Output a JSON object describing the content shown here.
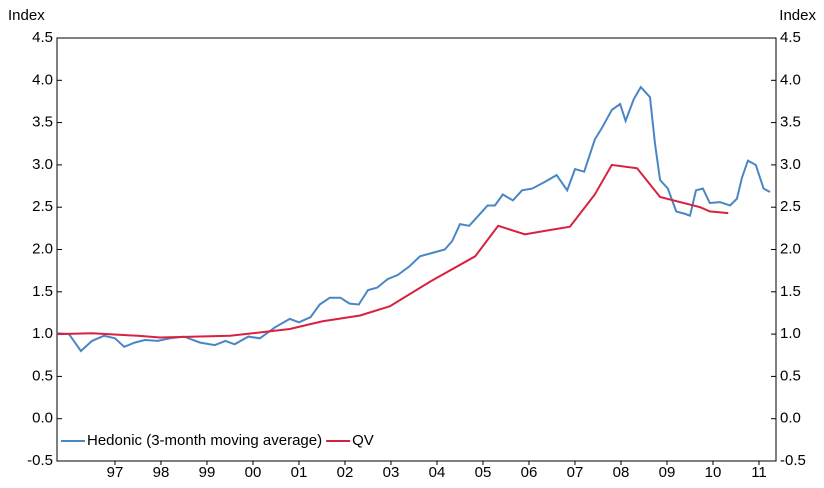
{
  "chart_data": {
    "type": "line",
    "y_label": "Index",
    "y2_label": "Index",
    "xlim": [
      1996.24,
      2011.87
    ],
    "xticks": [
      {
        "value": 1997.5,
        "label": "97"
      },
      {
        "value": 1998.5,
        "label": "98"
      },
      {
        "value": 1999.5,
        "label": "99"
      },
      {
        "value": 2000.5,
        "label": "00"
      },
      {
        "value": 2001.5,
        "label": "01"
      },
      {
        "value": 2002.5,
        "label": "02"
      },
      {
        "value": 2003.5,
        "label": "03"
      },
      {
        "value": 2004.5,
        "label": "04"
      },
      {
        "value": 2005.5,
        "label": "05"
      },
      {
        "value": 2006.5,
        "label": "06"
      },
      {
        "value": 2007.5,
        "label": "07"
      },
      {
        "value": 2008.5,
        "label": "08"
      },
      {
        "value": 2009.5,
        "label": "09"
      },
      {
        "value": 2010.5,
        "label": "10"
      },
      {
        "value": 2011.5,
        "label": "11"
      }
    ],
    "ylim": [
      -0.5,
      4.5
    ],
    "yticks": [
      4.5,
      {
        "value": 4,
        "label": "4.0"
      },
      3.5,
      {
        "value": 3,
        "label": "3.0"
      },
      2.5,
      {
        "value": 2,
        "label": "2.0"
      },
      1.5,
      {
        "value": 1,
        "label": "1.0"
      },
      0.5,
      {
        "value": 0,
        "label": "0.0"
      },
      -0.5
    ],
    "y2lim": [
      -0.5,
      4.5
    ],
    "y2ticks": [
      4.5,
      {
        "value": 4,
        "label": "4.0"
      },
      3.5,
      {
        "value": 3,
        "label": "3.0"
      },
      2.5,
      {
        "value": 2,
        "label": "2.0"
      },
      1.5,
      {
        "value": 1,
        "label": "1.0"
      },
      0.5,
      {
        "value": 0,
        "label": "0.0"
      },
      -0.5
    ],
    "legend": "lower left",
    "series": [
      {
        "name": "Hedonic (3-month moving average)",
        "color": "#4a86c5",
        "x": [
          1996.24,
          1996.5,
          1996.76,
          1997.0,
          1997.26,
          1997.5,
          1997.7,
          1997.93,
          1998.15,
          1998.43,
          1998.7,
          1999.0,
          1999.35,
          1999.67,
          1999.9,
          2000.1,
          2000.4,
          2000.65,
          2000.98,
          2001.3,
          2001.5,
          2001.75,
          2001.95,
          2002.17,
          2002.4,
          2002.6,
          2002.8,
          2003.0,
          2003.2,
          2003.43,
          2003.65,
          2003.9,
          2004.13,
          2004.4,
          2004.67,
          2004.83,
          2005.0,
          2005.2,
          2005.4,
          2005.6,
          2005.76,
          2005.93,
          2006.15,
          2006.35,
          2006.57,
          2006.85,
          2007.1,
          2007.33,
          2007.5,
          2007.7,
          2007.93,
          2008.1,
          2008.3,
          2008.48,
          2008.6,
          2008.78,
          2008.93,
          2009.13,
          2009.24,
          2009.35,
          2009.52,
          2009.7,
          2009.9,
          2010.0,
          2010.13,
          2010.28,
          2010.43,
          2010.65,
          2010.87,
          2011.02,
          2011.13,
          2011.26,
          2011.43,
          2011.6,
          2011.74
        ],
        "values": [
          1.01,
          1.0,
          0.8,
          0.92,
          0.98,
          0.95,
          0.85,
          0.9,
          0.93,
          0.92,
          0.95,
          0.97,
          0.9,
          0.87,
          0.92,
          0.88,
          0.97,
          0.95,
          1.08,
          1.18,
          1.14,
          1.2,
          1.35,
          1.43,
          1.43,
          1.36,
          1.35,
          1.52,
          1.55,
          1.65,
          1.7,
          1.8,
          1.92,
          1.96,
          2.0,
          2.1,
          2.3,
          2.28,
          2.4,
          2.52,
          2.52,
          2.65,
          2.58,
          2.7,
          2.72,
          2.8,
          2.88,
          2.7,
          2.95,
          2.92,
          3.3,
          3.45,
          3.65,
          3.72,
          3.52,
          3.78,
          3.92,
          3.8,
          3.25,
          2.82,
          2.72,
          2.45,
          2.42,
          2.4,
          2.7,
          2.72,
          2.55,
          2.56,
          2.52,
          2.6,
          2.85,
          3.05,
          3.0,
          2.72,
          2.68
        ]
      },
      {
        "name": "QV",
        "color": "#d8213f",
        "x": [
          1996.24,
          1997.0,
          1998.0,
          1998.48,
          2000.0,
          2001.3,
          2002.0,
          2002.83,
          2003.48,
          2004.35,
          2005.33,
          2005.83,
          2006.41,
          2006.96,
          2007.39,
          2007.93,
          2008.3,
          2008.85,
          2009.35,
          2010.22,
          2010.43,
          2010.83
        ],
        "values": [
          1.0,
          1.01,
          0.98,
          0.96,
          0.98,
          1.06,
          1.15,
          1.22,
          1.33,
          1.62,
          1.92,
          2.28,
          2.18,
          2.23,
          2.27,
          2.65,
          3.0,
          2.96,
          2.62,
          2.5,
          2.45,
          2.43
        ]
      }
    ]
  }
}
